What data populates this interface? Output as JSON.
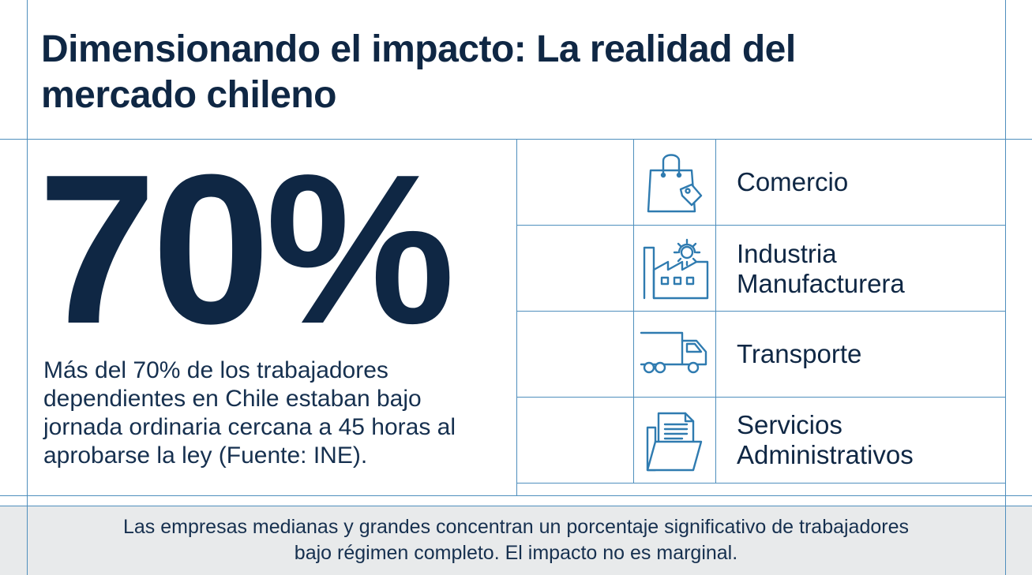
{
  "title": "Dimensionando el impacto: La realidad del mercado chileno",
  "stat": {
    "value": "70%",
    "description": "Más del 70% de los trabajadores dependientes en Chile estaban bajo jornada ordinaria cercana a 45 horas al aprobarse la ley (Fuente: INE)."
  },
  "sectors": [
    {
      "icon": "shopping-bag-icon",
      "label_line1": "Comercio",
      "label_line2": ""
    },
    {
      "icon": "factory-icon",
      "label_line1": "Industria",
      "label_line2": "Manufacturera"
    },
    {
      "icon": "truck-icon",
      "label_line1": "Transporte",
      "label_line2": ""
    },
    {
      "icon": "folder-document-icon",
      "label_line1": "Servicios",
      "label_line2": "Administrativos"
    }
  ],
  "footer": {
    "line1": "Las empresas medianas y grandes concentran un porcentaje significativo de trabajadores",
    "line2": "bajo régimen completo. El impacto no es marginal."
  },
  "colors": {
    "text_primary": "#0f2744",
    "grid_line": "#4f8fbd",
    "footer_background": "#e8eaeb"
  }
}
